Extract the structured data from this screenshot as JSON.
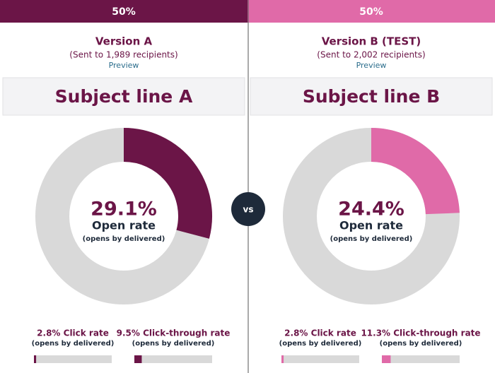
{
  "versions": [
    {
      "split": {
        "value": 50,
        "label": "50%"
      },
      "color": "#6b1547",
      "name": "Version A",
      "sent": "(Sent to 1,989 recipients)",
      "preview": "Preview",
      "subject": "Subject line A",
      "open_rate": {
        "value": 29.1,
        "label": "29.1%"
      },
      "open_rate_title": "Open rate",
      "open_rate_note": "(opens by delivered)",
      "click_rate": {
        "value": 2.8,
        "label": "2.8% Click rate",
        "note": "(opens by delivered)"
      },
      "click_through_rate": {
        "value": 9.5,
        "label": "9.5% Click-through rate",
        "note": "(opens by delivered)"
      }
    },
    {
      "split": {
        "value": 50,
        "label": "50%"
      },
      "color": "#e06aa8",
      "name": "Version B (TEST)",
      "sent": "(Sent to 2,002 recipients)",
      "preview": "Preview",
      "subject": "Subject line B",
      "open_rate": {
        "value": 24.4,
        "label": "24.4%"
      },
      "open_rate_title": "Open rate",
      "open_rate_note": "(opens by delivered)",
      "click_rate": {
        "value": 2.8,
        "label": "2.8% Click rate",
        "note": "(opens by delivered)"
      },
      "click_through_rate": {
        "value": 11.3,
        "label": "11.3% Click-through rate",
        "note": "(opens by delivered)"
      }
    }
  ],
  "vs": "vs"
}
